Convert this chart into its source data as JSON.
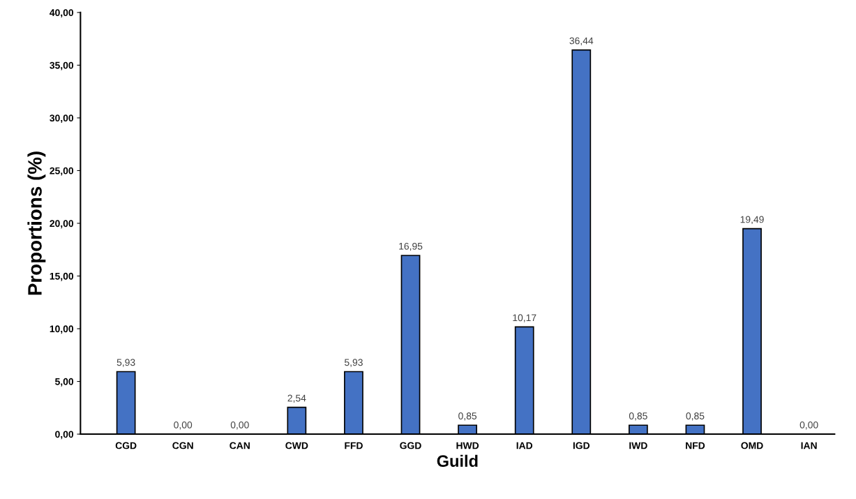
{
  "chart_data": {
    "type": "bar",
    "xlabel": "Guild",
    "ylabel": "Proportions (%)",
    "categories": [
      "CGD",
      "CGN",
      "CAN",
      "CWD",
      "FFD",
      "GGD",
      "HWD",
      "IAD",
      "IGD",
      "IWD",
      "NFD",
      "OMD",
      "IAN"
    ],
    "values": [
      5.93,
      0,
      0,
      2.54,
      5.93,
      16.95,
      0.85,
      10.17,
      36.44,
      0.85,
      0.85,
      19.49,
      0
    ],
    "value_labels": [
      "5,93",
      "0,00",
      "0,00",
      "2,54",
      "5,93",
      "16,95",
      "0,85",
      "10,17",
      "36,44",
      "0,85",
      "0,85",
      "19,49",
      "0,00"
    ],
    "color": "#4472c4",
    "ylim": [
      0,
      40
    ],
    "yticks": [
      {
        "value": 0,
        "label": "0,00"
      },
      {
        "value": 5,
        "label": "5,00"
      },
      {
        "value": 10,
        "label": "10,00"
      },
      {
        "value": 15,
        "label": "15,00"
      },
      {
        "value": 20,
        "label": "20,00"
      },
      {
        "value": 25,
        "label": "25,00"
      },
      {
        "value": 30,
        "label": "30,00"
      },
      {
        "value": 35,
        "label": "35,00"
      },
      {
        "value": 40,
        "label": "40,00"
      }
    ],
    "grid": false,
    "legend": false
  }
}
